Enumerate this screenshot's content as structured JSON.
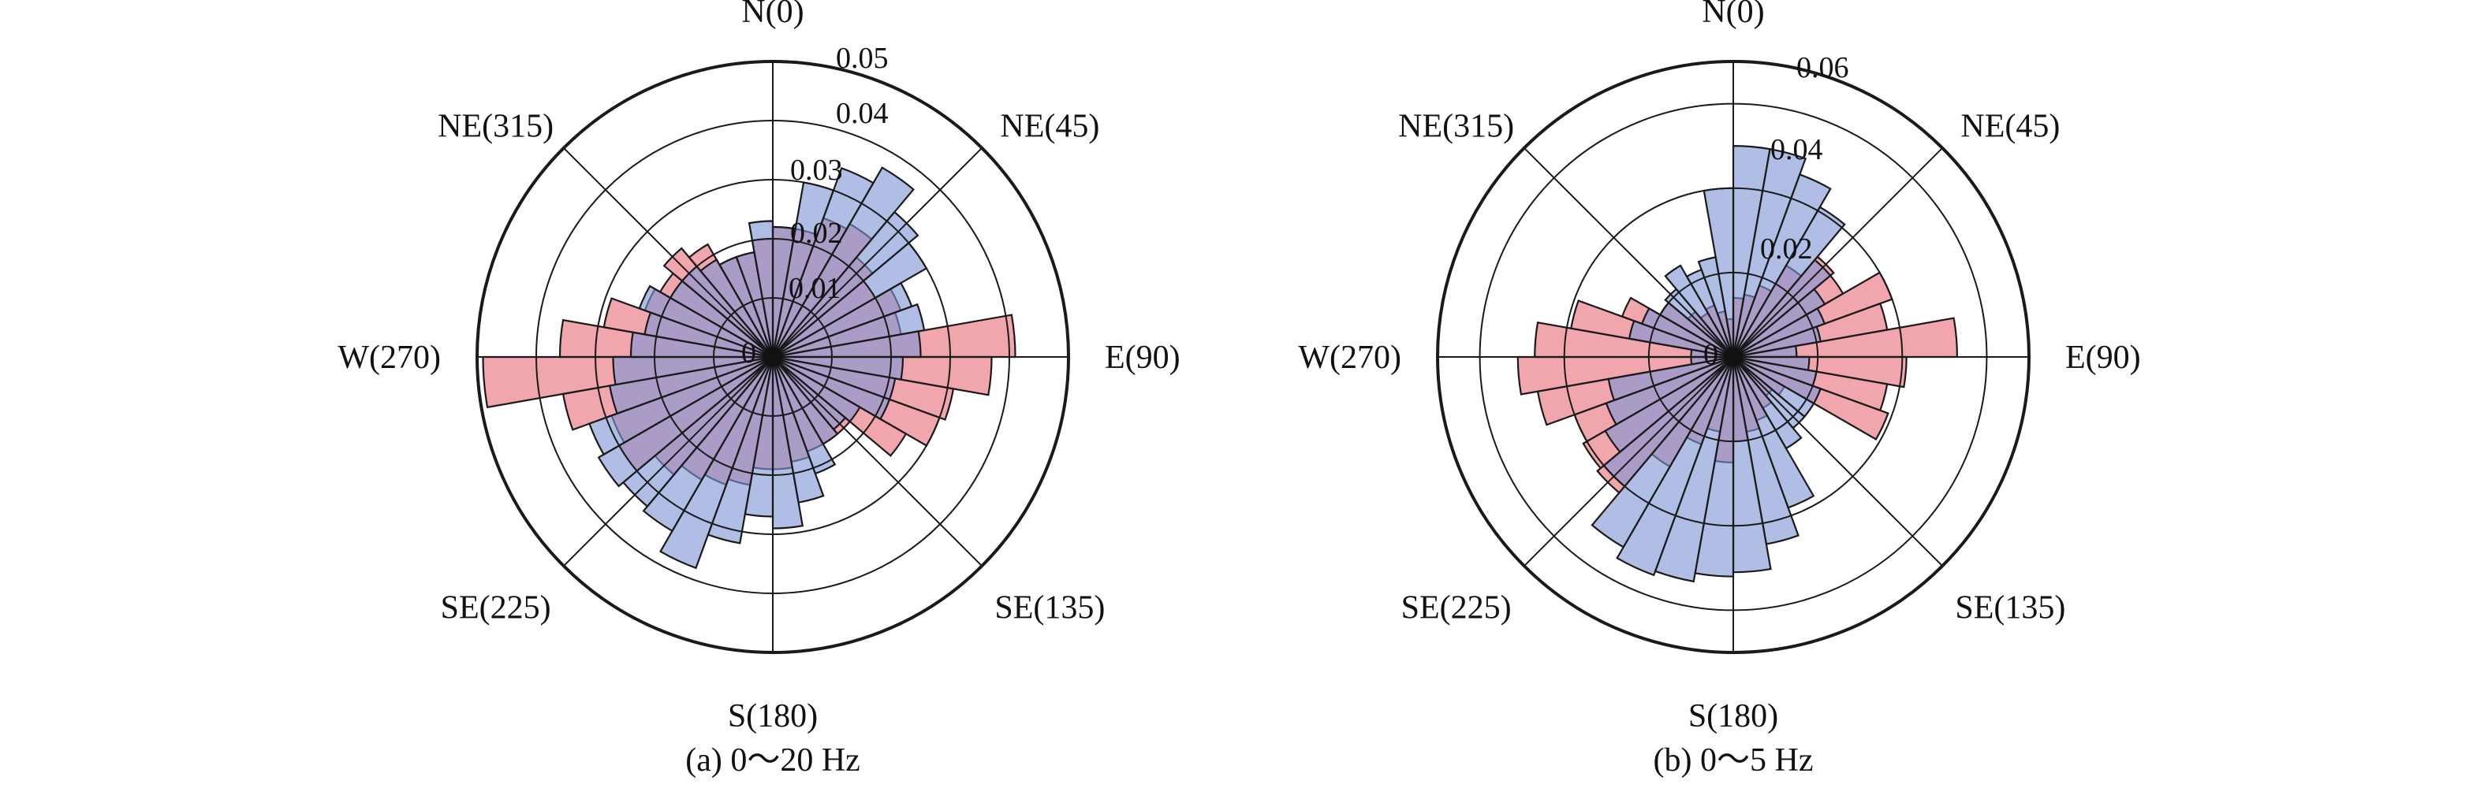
{
  "colors": {
    "series_a": "#e8707a",
    "series_b": "#7f96d6",
    "outline": "#1a1a1a",
    "grid": "#1a1a1a"
  },
  "chart_data": [
    {
      "type": "polar-bar",
      "caption": "(a) 0～20 Hz",
      "direction_labels": [
        "N(0)",
        "NE(45)",
        "E(90)",
        "SE(135)",
        "S(180)",
        "SE(225)",
        "W(270)",
        "NE(315)"
      ],
      "radial_ticks": [
        "0",
        "0.01",
        "0.02",
        "0.03",
        "0.04",
        "0.05"
      ],
      "rmax": 0.05,
      "bin_width_deg": 10,
      "bin_centers_deg": [
        5,
        15,
        25,
        35,
        45,
        55,
        65,
        75,
        85,
        95,
        105,
        115,
        125,
        135,
        145,
        155,
        165,
        175,
        185,
        195,
        205,
        215,
        225,
        235,
        245,
        255,
        265,
        275,
        285,
        295,
        305,
        315,
        325,
        335,
        345,
        355
      ],
      "series": [
        {
          "values": [
            0.022,
            0.022,
            0.025,
            0.026,
            0.022,
            0.02,
            0.023,
            0.022,
            0.041,
            0.037,
            0.031,
            0.03,
            0.026,
            0.017,
            0.017,
            0.017,
            0.018,
            0.019,
            0.019,
            0.022,
            0.023,
            0.024,
            0.026,
            0.03,
            0.029,
            0.036,
            0.049,
            0.036,
            0.029,
            0.023,
            0.022,
            0.024,
            0.022,
            0.018,
            0.018,
            0.02
          ]
        },
        {
          "values": [
            0.022,
            0.03,
            0.034,
            0.037,
            0.032,
            0.03,
            0.025,
            0.026,
            0.025,
            0.022,
            0.021,
            0.021,
            0.017,
            0.016,
            0.017,
            0.021,
            0.025,
            0.029,
            0.027,
            0.032,
            0.038,
            0.034,
            0.033,
            0.034,
            0.033,
            0.028,
            0.027,
            0.024,
            0.022,
            0.024,
            0.02,
            0.02,
            0.019,
            0.018,
            0.018,
            0.023
          ]
        }
      ]
    },
    {
      "type": "polar-bar",
      "caption": "(b) 0～5 Hz",
      "direction_labels": [
        "N(0)",
        "NE(45)",
        "E(90)",
        "SE(135)",
        "S(180)",
        "SE(225)",
        "W(270)",
        "NE(315)"
      ],
      "radial_ticks": [
        "0",
        "0.02",
        "0.04",
        "0.06"
      ],
      "rmax": 0.07,
      "bin_width_deg": 10,
      "bin_centers_deg": [
        5,
        15,
        25,
        35,
        45,
        55,
        65,
        75,
        85,
        95,
        105,
        115,
        125,
        135,
        145,
        155,
        165,
        175,
        185,
        195,
        205,
        215,
        225,
        235,
        245,
        255,
        265,
        275,
        285,
        295,
        305,
        315,
        325,
        335,
        345,
        355
      ],
      "series": [
        {
          "values": [
            0.014,
            0.015,
            0.018,
            0.025,
            0.031,
            0.03,
            0.04,
            0.037,
            0.053,
            0.041,
            0.037,
            0.039,
            0.014,
            0.012,
            0.014,
            0.016,
            0.018,
            0.02,
            0.025,
            0.018,
            0.022,
            0.03,
            0.042,
            0.041,
            0.04,
            0.047,
            0.051,
            0.047,
            0.039,
            0.028,
            0.02,
            0.014,
            0.012,
            0.013,
            0.011,
            0.009
          ]
        },
        {
          "values": [
            0.05,
            0.05,
            0.046,
            0.041,
            0.03,
            0.025,
            0.023,
            0.021,
            0.015,
            0.018,
            0.02,
            0.022,
            0.022,
            0.022,
            0.025,
            0.038,
            0.045,
            0.051,
            0.052,
            0.054,
            0.055,
            0.052,
            0.04,
            0.035,
            0.032,
            0.03,
            0.01,
            0.01,
            0.025,
            0.023,
            0.02,
            0.021,
            0.025,
            0.022,
            0.024,
            0.04
          ]
        }
      ]
    }
  ]
}
